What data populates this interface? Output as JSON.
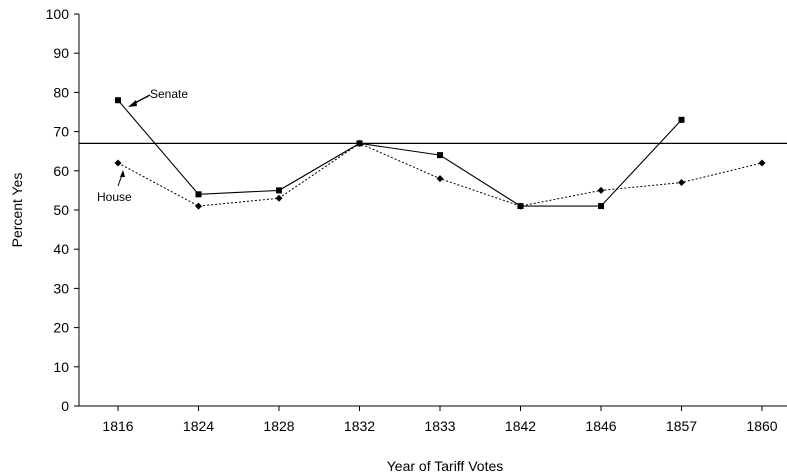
{
  "chart_data": {
    "type": "line",
    "categories": [
      "1816",
      "1824",
      "1828",
      "1832",
      "1833",
      "1842",
      "1846",
      "1857",
      "1860"
    ],
    "series": [
      {
        "name": "Senate",
        "values": [
          78,
          54,
          55,
          67,
          64,
          51,
          51,
          73,
          null
        ],
        "color": "#000000",
        "style": "solid",
        "marker": "square"
      },
      {
        "name": "House",
        "values": [
          62,
          51,
          53,
          67,
          58,
          51,
          55,
          57,
          62
        ],
        "color": "#000000",
        "style": "dotted",
        "marker": "diamond"
      }
    ],
    "reference_line": {
      "y": 67
    },
    "xlabel": "Year of Tariff Votes",
    "ylabel": "Percent Yes",
    "ylim": [
      0,
      100
    ],
    "yticks": [
      "0",
      "10",
      "20",
      "30",
      "40",
      "50",
      "60",
      "70",
      "80",
      "90",
      "100"
    ],
    "grid": false,
    "legend": "none",
    "annotations": [
      {
        "text": "Senate",
        "target_series": "Senate",
        "target_category": "1816"
      },
      {
        "text": "House",
        "target_series": "House",
        "target_category": "1816"
      }
    ]
  }
}
